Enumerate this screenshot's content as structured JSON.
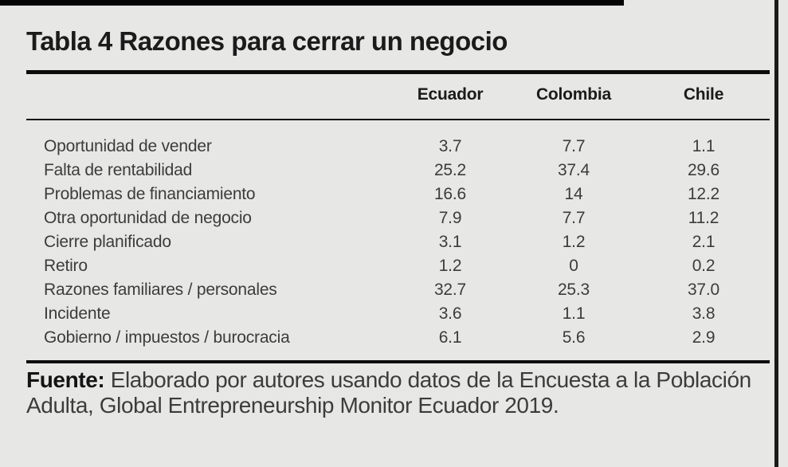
{
  "page": {
    "background_color": "#e7e7e6",
    "rule_color": "#0d0d0d"
  },
  "table": {
    "title": "Tabla 4 Razones para cerrar un negocio",
    "columns": [
      "Ecuador",
      "Colombia",
      "Chile"
    ],
    "rows": [
      {
        "label": "Oportunidad de vender",
        "values": [
          "3.7",
          "7.7",
          "1.1"
        ]
      },
      {
        "label": "Falta de rentabilidad",
        "values": [
          "25.2",
          "37.4",
          "29.6"
        ]
      },
      {
        "label": "Problemas de financiamiento",
        "values": [
          "16.6",
          "14",
          "12.2"
        ]
      },
      {
        "label": "Otra oportunidad de negocio",
        "values": [
          "7.9",
          "7.7",
          "11.2"
        ]
      },
      {
        "label": "Cierre planificado",
        "values": [
          "3.1",
          "1.2",
          "2.1"
        ]
      },
      {
        "label": "Retiro",
        "values": [
          "1.2",
          "0",
          "0.2"
        ]
      },
      {
        "label": "Razones familiares / personales",
        "values": [
          "32.7",
          "25.3",
          "37.0"
        ]
      },
      {
        "label": "Incidente",
        "values": [
          "3.6",
          "1.1",
          "3.8"
        ]
      },
      {
        "label": "Gobierno / impuestos / burocracia",
        "values": [
          "6.1",
          "5.6",
          "2.9"
        ]
      }
    ]
  },
  "source": {
    "label": "Fuente:",
    "text": "Elaborado por autores usando datos de la Encuesta a la Población Adulta, Global Entrepreneurship Monitor Ecuador 2019."
  },
  "chart_data": {
    "type": "table",
    "title": "Tabla 4 Razones para cerrar un negocio",
    "categories": [
      "Oportunidad de vender",
      "Falta de rentabilidad",
      "Problemas de financiamiento",
      "Otra oportunidad de negocio",
      "Cierre planificado",
      "Retiro",
      "Razones familiares / personales",
      "Incidente",
      "Gobierno / impuestos / burocracia"
    ],
    "series": [
      {
        "name": "Ecuador",
        "values": [
          3.7,
          25.2,
          16.6,
          7.9,
          3.1,
          1.2,
          32.7,
          3.6,
          6.1
        ]
      },
      {
        "name": "Colombia",
        "values": [
          7.7,
          37.4,
          14,
          7.7,
          1.2,
          0,
          25.3,
          1.1,
          5.6
        ]
      },
      {
        "name": "Chile",
        "values": [
          1.1,
          29.6,
          12.2,
          11.2,
          2.1,
          0.2,
          37.0,
          3.8,
          2.9
        ]
      }
    ]
  }
}
